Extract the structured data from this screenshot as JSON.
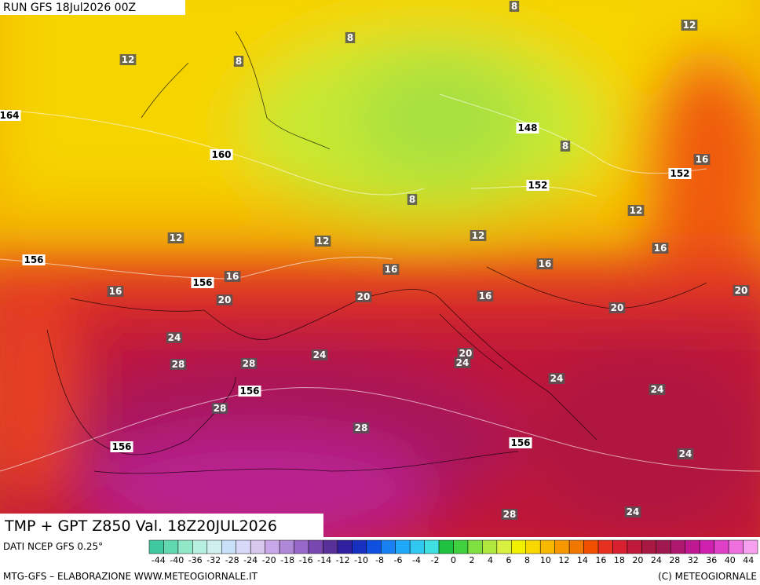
{
  "header": {
    "run": "RUN GFS 18Jul2026 00Z"
  },
  "map": {
    "temperature_labels": [
      "12",
      "8",
      "8",
      "8",
      "12",
      "8",
      "16",
      "8",
      "12",
      "12",
      "12",
      "12",
      "16",
      "16",
      "16",
      "16",
      "16",
      "20",
      "20",
      "16",
      "20",
      "20",
      "24",
      "24",
      "20",
      "24",
      "28",
      "28",
      "24",
      "24",
      "28",
      "28",
      "24",
      "28",
      "24"
    ],
    "height_labels": [
      "164",
      "160",
      "148",
      "152",
      "152",
      "156",
      "156",
      "156",
      "156",
      "156"
    ]
  },
  "footer": {
    "title": "TMP + GPT Z850 Val. 18Z20JUL2026",
    "source": "DATI NCEP GFS 0.25°",
    "credit": "MTG-GFS – ELABORAZIONE WWW.METEOGIORNALE.IT",
    "copyright": "(C) METEOGIORNALE"
  },
  "colorbar": {
    "ticks": [
      -44,
      -40,
      -36,
      -32,
      -28,
      -24,
      -20,
      -18,
      -16,
      -14,
      -12,
      -10,
      -8,
      -6,
      -4,
      -2,
      0,
      2,
      4,
      6,
      8,
      10,
      12,
      14,
      16,
      18,
      20,
      24,
      28,
      32,
      36,
      40,
      44
    ],
    "colors": [
      "#40c8a0",
      "#60d8b0",
      "#90e8c8",
      "#b8f0e0",
      "#d0f0f0",
      "#c8e0f8",
      "#d8d8f8",
      "#d8c8f0",
      "#c8a8e8",
      "#b088d8",
      "#9868c8",
      "#7848b0",
      "#583098",
      "#3020a0",
      "#1830c0",
      "#1050e0",
      "#1880f0",
      "#20a8f8",
      "#30c8f0",
      "#40e0e0",
      "#20c040",
      "#40d040",
      "#80e040",
      "#b0e840",
      "#d8f040",
      "#f0f000",
      "#f8d800",
      "#f8b800",
      "#f89800",
      "#f07800",
      "#f05000",
      "#e83020",
      "#d82030",
      "#c01838",
      "#a81840",
      "#a01850",
      "#b01870",
      "#c01890",
      "#d020b0",
      "#e040c8",
      "#f070e0",
      "#f8a0f0"
    ]
  }
}
